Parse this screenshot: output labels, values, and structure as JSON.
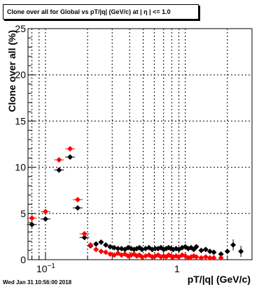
{
  "title": "Clone  over all for Global vs pT/|q| (GeV/c) at |  η | <= 1.0",
  "footer": "Wed Jan 31 10:56:00 2018",
  "chart_data": {
    "type": "scatter",
    "title": "Clone  over all for Global vs pT/|q| (GeV/c) at |  η | <= 1.0",
    "xlabel": "pT/|q| (GeV/c)",
    "ylabel": "Clone  over all (%)",
    "xscale": "log",
    "xlim": [
      0.075,
      3.0
    ],
    "ylim": [
      0,
      25
    ],
    "x_tick_labels": [
      "10^-1",
      "1"
    ],
    "y_ticks": [
      0,
      5,
      10,
      15,
      20,
      25
    ],
    "grid": true,
    "colors": {
      "series_black": "#000000",
      "series_red": "#ff0000"
    },
    "series": [
      {
        "color": "black",
        "marker": "diamond",
        "x": [
          0.08,
          0.1,
          0.125,
          0.15,
          0.17,
          0.19,
          0.21,
          0.23,
          0.25,
          0.27,
          0.29,
          0.31,
          0.33,
          0.35,
          0.37,
          0.39,
          0.41,
          0.43,
          0.45,
          0.47,
          0.49,
          0.52,
          0.55,
          0.58,
          0.61,
          0.64,
          0.67,
          0.7,
          0.73,
          0.76,
          0.79,
          0.82,
          0.86,
          0.9,
          0.95,
          1.0,
          1.05,
          1.1,
          1.15,
          1.2,
          1.3,
          1.4,
          1.5,
          1.6,
          1.8,
          2.0,
          2.2,
          2.5
        ],
        "y": [
          3.8,
          4.4,
          9.7,
          11.1,
          5.6,
          2.4,
          1.5,
          1.7,
          1.9,
          1.6,
          1.4,
          1.3,
          1.2,
          1.2,
          1.1,
          1.3,
          1.2,
          1.1,
          1.2,
          1.3,
          1.1,
          1.2,
          1.3,
          1.1,
          1.2,
          1.2,
          1.3,
          1.1,
          1.2,
          1.3,
          1.2,
          1.1,
          1.2,
          1.1,
          1.3,
          1.4,
          1.2,
          1.3,
          1.1,
          1.4,
          1.0,
          1.1,
          0.9,
          0.8,
          0.6,
          0.9,
          1.6,
          0.9
        ]
      },
      {
        "color": "red",
        "marker": "diamond",
        "x": [
          0.08,
          0.1,
          0.125,
          0.15,
          0.17,
          0.19,
          0.21,
          0.23,
          0.25,
          0.27,
          0.29,
          0.31,
          0.33,
          0.35,
          0.37,
          0.39,
          0.41,
          0.43,
          0.45,
          0.47,
          0.49,
          0.52,
          0.55,
          0.58,
          0.61,
          0.64,
          0.67,
          0.7,
          0.73,
          0.76,
          0.79,
          0.82,
          0.86,
          0.9,
          0.95,
          1.0,
          1.05,
          1.1,
          1.15,
          1.2,
          1.3,
          1.4,
          1.5,
          1.6,
          1.8
        ],
        "y": [
          4.5,
          5.2,
          10.8,
          12.0,
          6.5,
          2.8,
          1.6,
          1.1,
          0.9,
          0.8,
          0.6,
          0.5,
          0.7,
          0.5,
          0.6,
          0.4,
          0.5,
          0.6,
          0.4,
          0.5,
          0.3,
          0.4,
          0.5,
          0.3,
          0.4,
          0.5,
          0.3,
          0.4,
          0.3,
          0.5,
          0.4,
          0.3,
          0.4,
          0.3,
          0.5,
          0.4,
          0.2,
          0.3,
          0.4,
          0.3,
          0.2,
          0.3,
          0.2,
          0.2,
          0.2
        ]
      }
    ]
  }
}
